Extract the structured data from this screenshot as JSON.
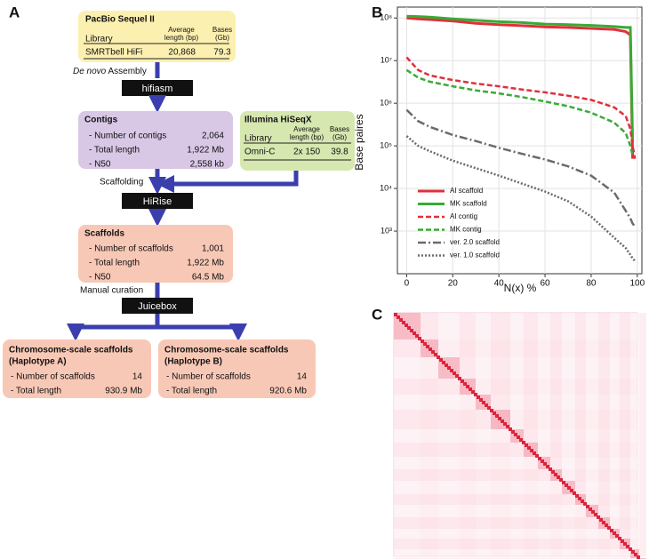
{
  "diagram": {
    "panel": "A",
    "sequel": {
      "title": "PacBio Sequel II",
      "headers": [
        [
          "Library"
        ],
        [
          "Average",
          "length (bp)"
        ],
        [
          "Bases",
          "(Gb)"
        ]
      ],
      "row": [
        "SMRTbell HiFi",
        "20,868",
        "79.3"
      ]
    },
    "assembly": {
      "italic": "De novo",
      "text": "Assembly"
    },
    "tool1": "hifiasm",
    "contigs": {
      "title": "Contigs",
      "rows": [
        [
          "- Number of contigs",
          "2,064"
        ],
        [
          "- Total length",
          "1,922 Mb"
        ],
        [
          "- N50",
          "2,558 kb"
        ]
      ]
    },
    "illumina": {
      "title": "Illumina HiSeqX",
      "headers": [
        [
          "Library"
        ],
        [
          "Average",
          "length (bp)"
        ],
        [
          "Bases",
          "(Gb)"
        ]
      ],
      "row": [
        "Omni-C",
        "2x 150",
        "39.8"
      ]
    },
    "scaffolding": "Scaffolding",
    "tool2": "HiRise",
    "scaffolds": {
      "title": "Scaffolds",
      "rows": [
        [
          "- Number of scaffolds",
          "1,001"
        ],
        [
          "- Total length",
          "1,922 Mb"
        ],
        [
          "- N50",
          "64.5 Mb"
        ]
      ]
    },
    "curation": "Manual curation",
    "tool3": "Juicebox",
    "hapA": {
      "title": [
        "Chromosome-scale scaffolds",
        "(Haplotype A)"
      ],
      "rows": [
        [
          "- Number of scaffolds",
          "14"
        ],
        [
          "- Total length",
          "930.9 Mb"
        ]
      ]
    },
    "hapB": {
      "title": [
        "Chromosome-scale scaffolds",
        "(Haplotype B)"
      ],
      "rows": [
        [
          "- Number of scaffolds",
          "14"
        ],
        [
          "- Total length",
          "920.6 Mb"
        ]
      ]
    }
  },
  "chart_data": {
    "type": "line",
    "panel": "B",
    "xlabel": "N(x) %",
    "ylabel": "Base paires",
    "ylog": true,
    "grid": true,
    "legend": "lower left",
    "x": [
      0,
      5,
      10,
      20,
      30,
      40,
      50,
      60,
      70,
      80,
      90,
      95,
      97,
      98,
      99
    ],
    "xlim": [
      -4,
      102
    ],
    "xticks": [
      0,
      20,
      40,
      60,
      80,
      100
    ],
    "ylim": [
      100,
      180000000
    ],
    "yticks": [
      {
        "value": 1000,
        "label": "10³"
      },
      {
        "value": 10000,
        "label": "10⁴"
      },
      {
        "value": 100000,
        "label": "10⁵"
      },
      {
        "value": 1000000,
        "label": "10⁶"
      },
      {
        "value": 10000000,
        "label": "10⁷"
      },
      {
        "value": 100000000,
        "label": "10⁸"
      }
    ],
    "series": [
      {
        "name": "AI scaffold",
        "color": "#e0303a",
        "style": "solid",
        "values": [
          100000000,
          95000000,
          92000000,
          85000000,
          75000000,
          70000000,
          66000000,
          62000000,
          60000000,
          57000000,
          54000000,
          48000000,
          40000000,
          50000,
          null
        ]
      },
      {
        "name": "MK scaffold",
        "color": "#3aaa35",
        "style": "solid",
        "values": [
          110000000,
          108000000,
          105000000,
          95000000,
          88000000,
          82000000,
          78000000,
          72000000,
          70000000,
          67000000,
          63000000,
          60000000,
          60000000,
          120000,
          null
        ]
      },
      {
        "name": "AI contig",
        "color": "#e0303a",
        "style": "dashed",
        "values": [
          12000000,
          6000000,
          4500000,
          3500000,
          2900000,
          2500000,
          2100000,
          1800000,
          1500000,
          1200000,
          800000,
          500000,
          250000,
          100000,
          50000
        ]
      },
      {
        "name": "MK contig",
        "color": "#3aaa35",
        "style": "dashed",
        "values": [
          6000000,
          4000000,
          3200000,
          2500000,
          2000000,
          1700000,
          1400000,
          1100000,
          850000,
          600000,
          350000,
          200000,
          100000,
          60000,
          null
        ]
      },
      {
        "name": "ver. 2.0 scaffold",
        "color": "#6b6b6b",
        "style": "dashdot",
        "values": [
          700000,
          380000,
          280000,
          180000,
          130000,
          90000,
          65000,
          48000,
          33000,
          20000,
          8000,
          3000,
          2000,
          1500,
          1300
        ]
      },
      {
        "name": "ver. 1.0 scaffold",
        "color": "#6b6b6b",
        "style": "dotted",
        "values": [
          170000,
          100000,
          75000,
          45000,
          30000,
          20000,
          13000,
          8500,
          5000,
          2200,
          700,
          400,
          280,
          230,
          200
        ]
      }
    ]
  },
  "heatmap": {
    "panel": "C"
  }
}
